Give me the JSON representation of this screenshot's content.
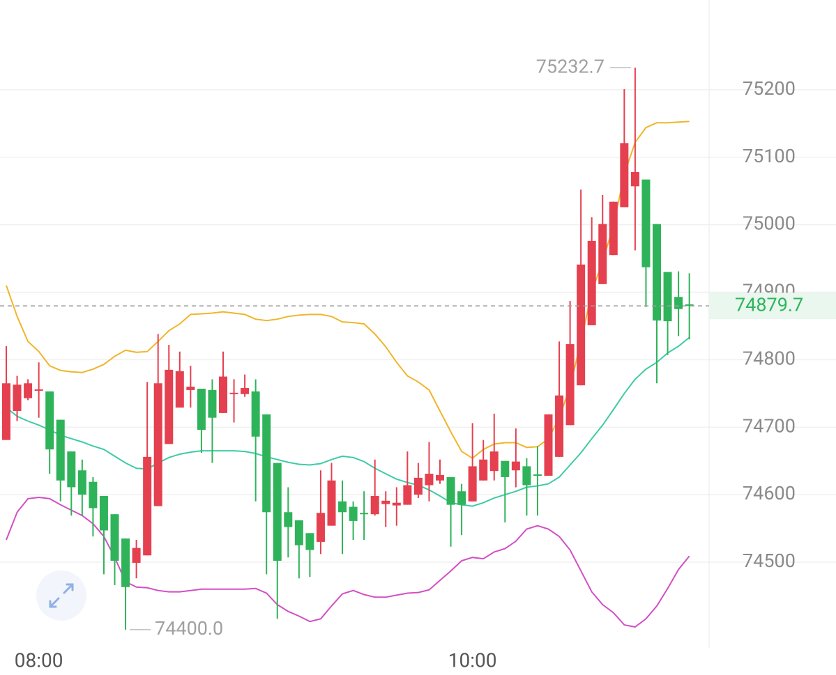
{
  "chart_data": {
    "type": "candlestick",
    "categories": [
      null,
      null,
      null,
      "08:00",
      null,
      null,
      null,
      null,
      null,
      null,
      null,
      null,
      null,
      null,
      null,
      null,
      null,
      null,
      null,
      null,
      null,
      null,
      null,
      null,
      null,
      null,
      null,
      null,
      null,
      null,
      null,
      null,
      null,
      null,
      null,
      null,
      null,
      null,
      null,
      null,
      null,
      null,
      null,
      "10:00",
      null,
      null,
      null,
      null,
      null,
      null,
      null,
      null,
      null,
      null,
      null,
      null,
      null,
      null,
      null,
      null,
      null,
      null,
      null,
      null
    ],
    "open": [
      74681,
      74724,
      74743,
      74754,
      74753,
      74711,
      74664,
      74636,
      74619,
      74598,
      74571,
      74535,
      74499,
      74510,
      74583,
      74675,
      74729,
      74755,
      74757,
      74755,
      74721,
      74749,
      74749,
      74753,
      74719,
      74647,
      74574,
      74562,
      74543,
      74530,
      74554,
      74590,
      74582,
      74573,
      74571,
      74586,
      74584,
      74585,
      74600,
      74614,
      74621,
      74626,
      74605,
      74590,
      74621,
      74635,
      74650,
      74636,
      74642,
      74630,
      74628,
      74656,
      74703,
      74762,
      74851,
      74912,
      74955,
      75026,
      75057,
      75067,
      75001,
      74930,
      74893,
      74882
    ],
    "high": [
      74820,
      74776,
      74771,
      74796,
      74753,
      74711,
      74664,
      74652,
      74626,
      74598,
      74571,
      74535,
      74533,
      74767,
      74838,
      74822,
      74812,
      74791,
      74757,
      74771,
      74812,
      74771,
      74778,
      74771,
      74719,
      74647,
      74611,
      74562,
      74543,
      74636,
      74647,
      74621,
      74590,
      74605,
      74652,
      74605,
      74611,
      74664,
      74647,
      74678,
      74652,
      74626,
      74616,
      74706,
      74681,
      74720,
      74650,
      74698,
      74654,
      74672,
      74719,
      74827,
      74887,
      75052,
      75011,
      75044,
      75034,
      75201,
      75232.7,
      75067,
      75001,
      74930,
      74931,
      74928
    ],
    "low": [
      74681,
      74709,
      74740,
      74714,
      74631,
      74590,
      74569,
      74569,
      74538,
      74482,
      74466,
      74400,
      74476,
      74510,
      74583,
      74675,
      74729,
      74729,
      74662,
      74647,
      74721,
      74707,
      74745,
      74590,
      74482,
      74416,
      74507,
      74476,
      74478,
      74512,
      74554,
      74512,
      74533,
      74533,
      74569,
      74552,
      74554,
      74585,
      74595,
      74590,
      74616,
      74523,
      74540,
      74590,
      74621,
      74621,
      74559,
      74611,
      74569,
      74569,
      74628,
      74656,
      74703,
      74762,
      74851,
      74912,
      74955,
      75026,
      74962,
      74878,
      74765,
      74807,
      74835,
      74830
    ],
    "close": [
      74765,
      74763,
      74765,
      74756,
      74667,
      74621,
      74611,
      74600,
      74580,
      74547,
      74502,
      74463,
      74521,
      74656,
      74765,
      74785,
      74783,
      74760,
      74696,
      74714,
      74775,
      74751,
      74758,
      74686,
      74574,
      74502,
      74552,
      74525,
      74518,
      74573,
      74621,
      74574,
      74561,
      74571,
      74598,
      74591,
      74588,
      74614,
      74625,
      74631,
      74629,
      74585,
      74585,
      74642,
      74652,
      74664,
      74626,
      74649,
      74614,
      74628,
      74719,
      74747,
      74823,
      74941,
      74976,
      75001,
      75034,
      75121,
      75078,
      74937,
      74858,
      74857,
      74875,
      74879.7
    ],
    "up_color": "#e5404f",
    "down_color": "#2fb35a",
    "lines": [
      {
        "color": "#f0b52a",
        "values": [
          74910,
          74864,
          74827,
          74812,
          74791,
          74784,
          74782,
          74781,
          74786,
          74793,
          74805,
          74814,
          74811,
          74812,
          74827,
          74843,
          74853,
          74867,
          74868,
          74869,
          74871,
          74869,
          74867,
          74860,
          74858,
          74860,
          74864,
          74866,
          74867,
          74867,
          74864,
          74856,
          74855,
          74853,
          74838,
          74819,
          74796,
          74776,
          74767,
          74755,
          74724,
          74693,
          74664,
          74654,
          74667,
          74675,
          74677,
          74677,
          74670,
          74671,
          74683,
          74714,
          74760,
          74827,
          74900,
          74946,
          74998,
          75075,
          75122,
          75144,
          75151,
          75151,
          75152,
          75153
        ]
      },
      {
        "color": "#3ecba5",
        "values": [
          74729,
          74716,
          74709,
          74703,
          74696,
          74688,
          74683,
          74678,
          74672,
          74667,
          74657,
          74647,
          74639,
          74638,
          74647,
          74655,
          74660,
          74663,
          74665,
          74665,
          74665,
          74665,
          74664,
          74661,
          74656,
          74652,
          74648,
          74645,
          74644,
          74646,
          74652,
          74657,
          74655,
          74649,
          74639,
          74631,
          74623,
          74618,
          74614,
          74607,
          74598,
          74588,
          74585,
          74583,
          74588,
          74595,
          74600,
          74605,
          74611,
          74613,
          74616,
          74626,
          74644,
          74662,
          74683,
          74703,
          74726,
          74750,
          74771,
          74786,
          74796,
          74810,
          74820,
          74833
        ]
      },
      {
        "color": "#d24fc3",
        "values": [
          74533,
          74574,
          74594,
          74596,
          74594,
          74585,
          74577,
          74569,
          74557,
          74538,
          74507,
          74471,
          74463,
          74462,
          74458,
          74456,
          74456,
          74458,
          74460,
          74460,
          74460,
          74460,
          74460,
          74461,
          74454,
          74437,
          74427,
          74420,
          74412,
          74416,
          74435,
          74453,
          74458,
          74452,
          74448,
          74448,
          74451,
          74454,
          74455,
          74459,
          74473,
          74487,
          74502,
          74507,
          74505,
          74515,
          74520,
          74531,
          74549,
          74554,
          74549,
          74538,
          74518,
          74487,
          74456,
          74437,
          74425,
          74407,
          74404,
          74416,
          74435,
          74461,
          74489,
          74509
        ]
      }
    ],
    "ylim": [
      74373,
      75333
    ],
    "yticks": [
      74500,
      74600,
      74700,
      74800,
      74900,
      75000,
      75100,
      75200
    ],
    "grid": true,
    "annotations": {
      "high": {
        "value": 75232.7,
        "label": "75232.7"
      },
      "low": {
        "value": 74400,
        "label": "74400.0"
      },
      "last": {
        "value": 74879.7,
        "label": "74879.7"
      }
    }
  }
}
